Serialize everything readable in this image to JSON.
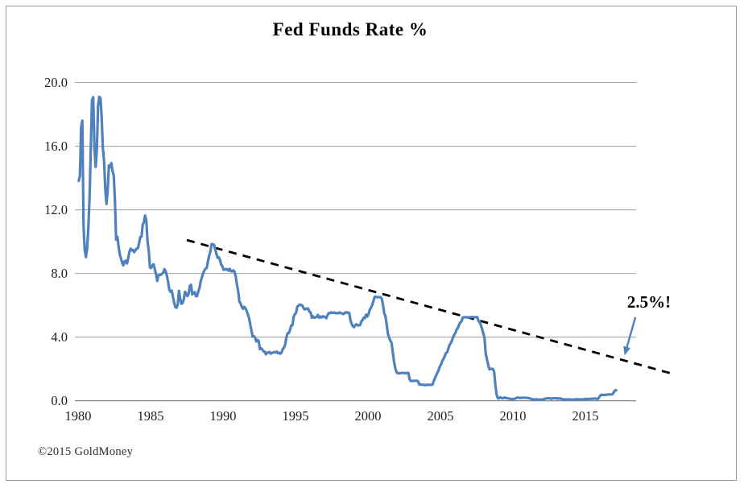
{
  "footer": {
    "copyright": "©2015 GoldMoney"
  },
  "chart_data": {
    "type": "line",
    "title": "Fed Funds Rate %",
    "xlabel": "",
    "ylabel": "",
    "grid": "horizontal",
    "legend": "none",
    "ylim": [
      0.0,
      20.0
    ],
    "xlim": [
      1979.5,
      2018.5
    ],
    "y_ticks": [
      0.0,
      4.0,
      8.0,
      12.0,
      16.0,
      20.0
    ],
    "y_tick_labels": [
      "0.0",
      "4.0",
      "8.0",
      "12.0",
      "16.0",
      "20.0"
    ],
    "x_ticks": [
      1980,
      1985,
      1990,
      1995,
      2000,
      2005,
      2010,
      2015
    ],
    "x_tick_labels": [
      "1980",
      "1985",
      "1990",
      "1995",
      "2000",
      "2005",
      "2010",
      "2015"
    ],
    "colors": {
      "series_line": "#4f81bd",
      "trendline": "#000000",
      "arrow": "#4f81bd",
      "gridline": "#a6a6a6",
      "axis_line": "#7a7a7a"
    },
    "series": [
      {
        "name": "Fed Funds Rate %",
        "cadence": "monthly",
        "years": [
          {
            "year": 1980,
            "m": [
              13.82,
              14.13,
              17.19,
              17.61,
              10.98,
              9.47,
              9.03,
              9.61,
              10.87,
              12.81,
              15.85,
              18.9
            ]
          },
          {
            "year": 1981,
            "m": [
              19.08,
              15.93,
              14.7,
              15.72,
              18.52,
              19.1,
              19.04,
              17.82,
              15.87,
              15.08,
              13.31,
              12.37
            ]
          },
          {
            "year": 1982,
            "m": [
              13.22,
              14.78,
              14.68,
              14.94,
              14.45,
              14.15,
              12.59,
              10.12,
              10.31,
              9.71,
              9.2,
              8.95
            ]
          },
          {
            "year": 1983,
            "m": [
              8.68,
              8.51,
              8.77,
              8.8,
              8.63,
              8.98,
              9.37,
              9.56,
              9.45,
              9.48,
              9.34,
              9.47
            ]
          },
          {
            "year": 1984,
            "m": [
              9.56,
              9.59,
              9.91,
              10.29,
              10.32,
              11.06,
              11.23,
              11.64,
              11.3,
              9.99,
              9.43,
              8.38
            ]
          },
          {
            "year": 1985,
            "m": [
              8.35,
              8.5,
              8.58,
              8.27,
              7.97,
              7.53,
              7.88,
              7.9,
              7.92,
              7.99,
              8.05,
              8.27
            ]
          },
          {
            "year": 1986,
            "m": [
              8.14,
              7.86,
              7.48,
              6.99,
              6.85,
              6.92,
              6.56,
              6.17,
              5.89,
              5.85,
              6.04,
              6.91
            ]
          },
          {
            "year": 1987,
            "m": [
              6.43,
              6.1,
              6.13,
              6.37,
              6.85,
              6.73,
              6.58,
              6.73,
              7.22,
              7.29,
              6.69,
              6.77
            ]
          },
          {
            "year": 1988,
            "m": [
              6.83,
              6.58,
              6.58,
              6.87,
              7.09,
              7.51,
              7.75,
              8.01,
              8.19,
              8.3,
              8.35,
              8.76
            ]
          },
          {
            "year": 1989,
            "m": [
              9.12,
              9.36,
              9.85,
              9.84,
              9.81,
              9.53,
              9.24,
              8.99,
              9.02,
              8.84,
              8.55,
              8.45
            ]
          },
          {
            "year": 1990,
            "m": [
              8.23,
              8.24,
              8.28,
              8.26,
              8.18,
              8.29,
              8.15,
              8.13,
              8.2,
              8.11,
              7.81,
              7.31
            ]
          },
          {
            "year": 1991,
            "m": [
              6.91,
              6.25,
              6.12,
              5.91,
              5.78,
              5.9,
              5.82,
              5.66,
              5.45,
              5.21,
              4.81,
              4.43
            ]
          },
          {
            "year": 1992,
            "m": [
              4.03,
              4.06,
              3.98,
              3.73,
              3.82,
              3.76,
              3.25,
              3.3,
              3.22,
              3.1,
              3.09,
              2.92
            ]
          },
          {
            "year": 1993,
            "m": [
              3.02,
              3.03,
              3.07,
              2.96,
              3.0,
              3.04,
              3.06,
              3.03,
              3.09,
              2.99,
              3.02,
              2.96
            ]
          },
          {
            "year": 1994,
            "m": [
              3.05,
              3.25,
              3.34,
              3.56,
              4.01,
              4.25,
              4.26,
              4.47,
              4.73,
              4.76,
              5.29,
              5.45
            ]
          },
          {
            "year": 1995,
            "m": [
              5.53,
              5.92,
              5.98,
              6.05,
              6.01,
              6.0,
              5.85,
              5.74,
              5.8,
              5.76,
              5.8,
              5.6
            ]
          },
          {
            "year": 1996,
            "m": [
              5.56,
              5.22,
              5.31,
              5.22,
              5.24,
              5.27,
              5.4,
              5.22,
              5.3,
              5.24,
              5.31,
              5.29
            ]
          },
          {
            "year": 1997,
            "m": [
              5.25,
              5.19,
              5.39,
              5.51,
              5.5,
              5.56,
              5.52,
              5.54,
              5.54,
              5.5,
              5.52,
              5.5
            ]
          },
          {
            "year": 1998,
            "m": [
              5.56,
              5.51,
              5.49,
              5.45,
              5.49,
              5.56,
              5.54,
              5.55,
              5.51,
              5.07,
              4.83,
              4.68
            ]
          },
          {
            "year": 1999,
            "m": [
              4.63,
              4.76,
              4.81,
              4.74,
              4.74,
              4.76,
              4.99,
              5.07,
              5.22,
              5.2,
              5.42,
              5.3
            ]
          },
          {
            "year": 2000,
            "m": [
              5.45,
              5.73,
              5.85,
              6.02,
              6.27,
              6.53,
              6.54,
              6.5,
              6.52,
              6.51,
              6.51,
              6.4
            ]
          },
          {
            "year": 2001,
            "m": [
              5.98,
              5.49,
              5.31,
              4.8,
              4.21,
              3.97,
              3.77,
              3.65,
              3.07,
              2.49,
              2.09,
              1.82
            ]
          },
          {
            "year": 2002,
            "m": [
              1.73,
              1.74,
              1.73,
              1.75,
              1.75,
              1.75,
              1.73,
              1.74,
              1.75,
              1.75,
              1.34,
              1.24
            ]
          },
          {
            "year": 2003,
            "m": [
              1.24,
              1.26,
              1.25,
              1.26,
              1.26,
              1.22,
              1.01,
              1.03,
              1.01,
              1.01,
              1.0,
              0.98
            ]
          },
          {
            "year": 2004,
            "m": [
              1.0,
              1.01,
              1.0,
              1.0,
              1.0,
              1.03,
              1.26,
              1.43,
              1.61,
              1.76,
              1.93,
              2.16
            ]
          },
          {
            "year": 2005,
            "m": [
              2.28,
              2.5,
              2.63,
              2.79,
              3.0,
              3.04,
              3.26,
              3.5,
              3.62,
              3.78,
              4.0,
              4.16
            ]
          },
          {
            "year": 2006,
            "m": [
              4.29,
              4.49,
              4.59,
              4.79,
              4.94,
              4.99,
              5.24,
              5.25,
              5.25,
              5.25,
              5.25,
              5.24
            ]
          },
          {
            "year": 2007,
            "m": [
              5.25,
              5.26,
              5.26,
              5.25,
              5.25,
              5.25,
              5.26,
              5.02,
              4.94,
              4.76,
              4.49,
              4.24
            ]
          },
          {
            "year": 2008,
            "m": [
              3.94,
              2.98,
              2.61,
              2.28,
              1.98,
              2.0,
              2.01,
              2.0,
              1.81,
              0.97,
              0.39,
              0.16
            ]
          },
          {
            "year": 2009,
            "m": [
              0.15,
              0.22,
              0.18,
              0.15,
              0.18,
              0.21,
              0.16,
              0.16,
              0.15,
              0.12,
              0.12,
              0.12
            ]
          },
          {
            "year": 2010,
            "m": [
              0.11,
              0.13,
              0.16,
              0.2,
              0.2,
              0.18,
              0.18,
              0.19,
              0.19,
              0.19,
              0.19,
              0.18
            ]
          },
          {
            "year": 2011,
            "m": [
              0.17,
              0.16,
              0.14,
              0.1,
              0.09,
              0.09,
              0.07,
              0.1,
              0.08,
              0.07,
              0.08,
              0.07
            ]
          },
          {
            "year": 2012,
            "m": [
              0.08,
              0.1,
              0.13,
              0.14,
              0.16,
              0.16,
              0.16,
              0.13,
              0.14,
              0.16,
              0.16,
              0.16
            ]
          },
          {
            "year": 2013,
            "m": [
              0.14,
              0.15,
              0.14,
              0.15,
              0.11,
              0.09,
              0.09,
              0.08,
              0.08,
              0.09,
              0.08,
              0.09
            ]
          },
          {
            "year": 2014,
            "m": [
              0.07,
              0.07,
              0.08,
              0.09,
              0.09,
              0.1,
              0.09,
              0.09,
              0.09,
              0.09,
              0.09,
              0.12
            ]
          },
          {
            "year": 2015,
            "m": [
              0.11,
              0.11,
              0.11,
              0.12,
              0.12,
              0.13,
              0.13,
              0.14,
              0.14,
              0.12,
              0.12,
              0.24
            ]
          },
          {
            "year": 2016,
            "m": [
              0.34,
              0.38,
              0.36,
              0.37,
              0.37,
              0.38,
              0.39,
              0.4,
              0.4,
              0.4,
              0.41,
              0.54
            ]
          },
          {
            "year": 2017,
            "m": [
              0.65,
              0.66
            ]
          }
        ]
      }
    ],
    "trendline": {
      "style": "dashed",
      "from": {
        "year": 1987.5,
        "value": 10.1
      },
      "to": {
        "year": 2021.2,
        "value": 1.65
      }
    },
    "annotation": {
      "text": "2.5%!",
      "arrow_from": {
        "year": 2018.45,
        "value": 5.25
      },
      "arrow_to": {
        "year": 2017.7,
        "value": 2.85
      }
    }
  }
}
